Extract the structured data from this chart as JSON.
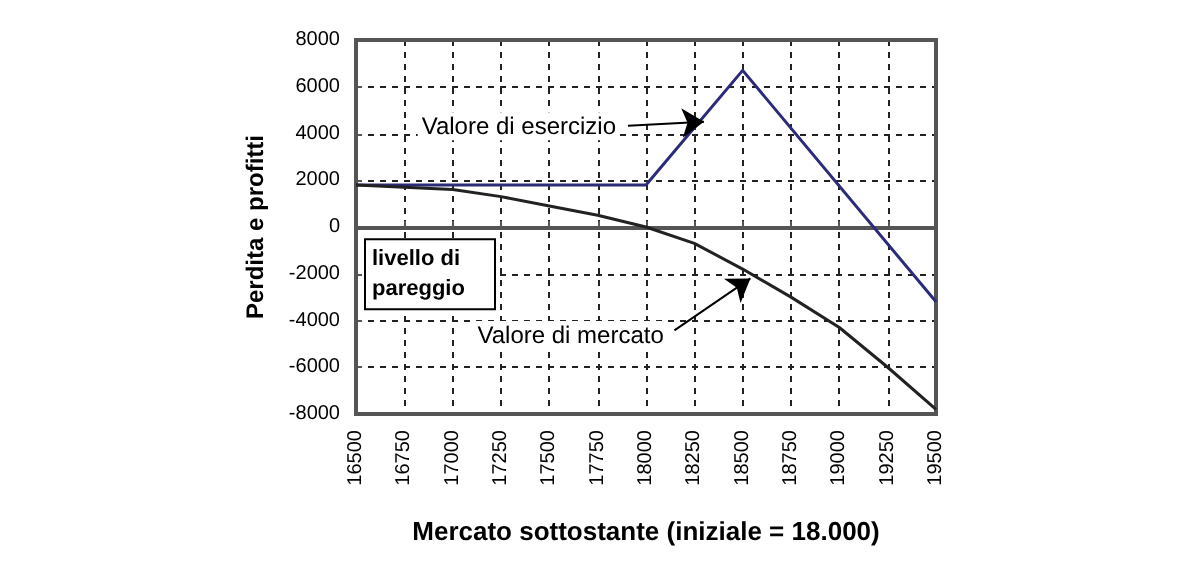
{
  "chart_data": {
    "type": "line",
    "xlabel": "Mercato sottostante (iniziale = 18.000)",
    "ylabel": "Perdita e profitti",
    "series": [
      {
        "color": "#2b2b7a",
        "x": [
          16500,
          18000,
          18500,
          19500
        ],
        "values": [
          1800,
          1800,
          6700,
          -3200
        ]
      },
      {
        "color": "#222222",
        "x": [
          16500,
          16750,
          17000,
          17250,
          17500,
          17750,
          18000,
          18250,
          18500,
          18750,
          19000,
          19250,
          19500
        ],
        "values": [
          1800,
          1700,
          1600,
          1300,
          900,
          500,
          0,
          -700,
          -1800,
          -3000,
          -4300,
          -6000,
          -7800
        ]
      }
    ],
    "xlim": [
      16500,
      19500
    ],
    "xticks": [
      16500,
      16750,
      17000,
      17250,
      17500,
      17750,
      18000,
      18250,
      18500,
      18750,
      19000,
      19250,
      19500
    ],
    "ylim": [
      -8000,
      8000
    ],
    "yticks": [
      -8000,
      -6000,
      -4000,
      -2000,
      0,
      2000,
      4000,
      6000,
      8000
    ],
    "grid": true,
    "marker": "none",
    "line_style": "solid",
    "annotations": [
      {
        "text": "Valore di esercizio",
        "x": 18300,
        "y": 4500
      },
      {
        "text": "Valore di mercato",
        "x": 18540,
        "y": -2200
      },
      "livello di pareggio"
    ]
  }
}
